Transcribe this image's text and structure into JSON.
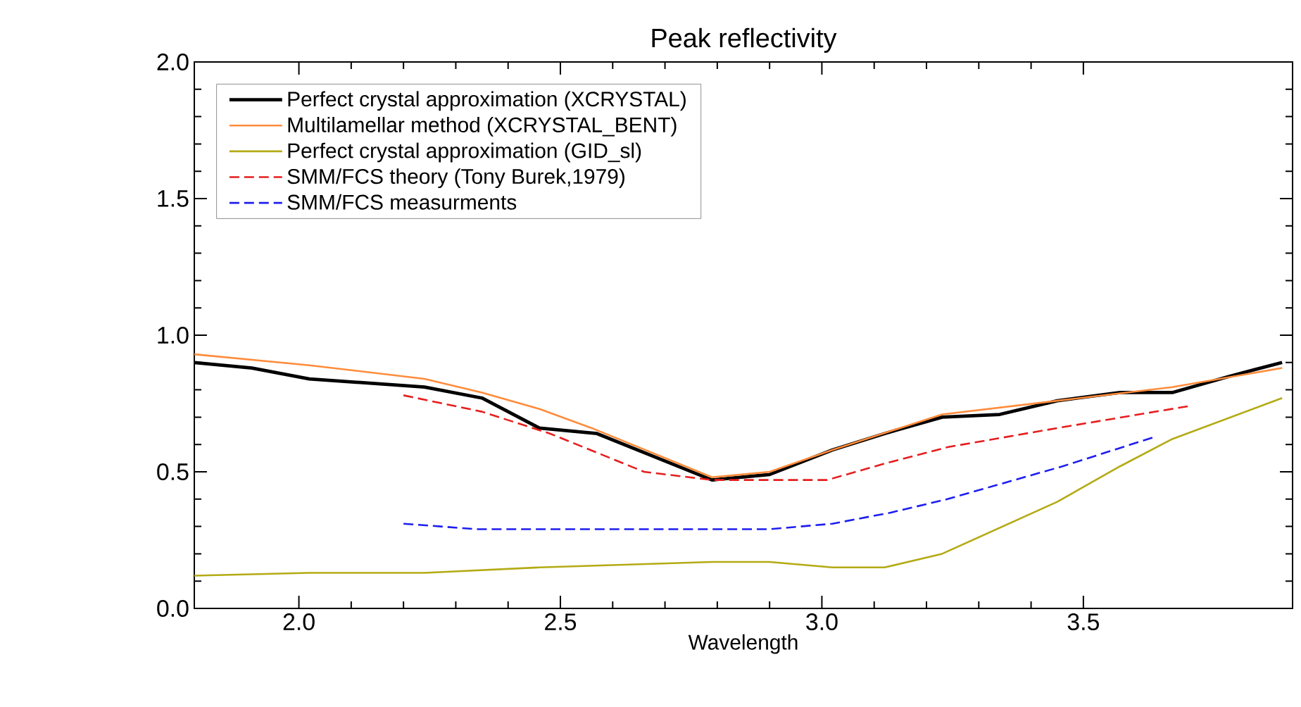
{
  "chart_data": {
    "type": "line",
    "title": "Peak reflectivity",
    "xlabel": "Wavelength",
    "xlim": [
      1.8,
      3.9
    ],
    "ylim": [
      0,
      2.0
    ],
    "xticks": [
      {
        "value": 2.0,
        "label": "2.0"
      },
      {
        "value": 2.5,
        "label": "2.5"
      },
      {
        "value": 3.0,
        "label": "3.0"
      },
      {
        "value": 3.5,
        "label": "3.5"
      }
    ],
    "yticks": [
      {
        "value": 0,
        "label": "0.0"
      },
      {
        "value": 0.5,
        "label": "0.5"
      },
      {
        "value": 1.0,
        "label": "1.0"
      },
      {
        "value": 1.5,
        "label": "1.5"
      },
      {
        "value": 2.0,
        "label": "2.0"
      }
    ],
    "legend": "top left",
    "marker": "none",
    "grid": false,
    "series": [
      {
        "name": "Perfect crystal approximation (XCRYSTAL)",
        "color": "#000000",
        "line_style": "solid",
        "x": [
          1.8,
          1.91,
          2.02,
          2.24,
          2.35,
          2.46,
          2.57,
          2.79,
          2.9,
          3.02,
          3.12,
          3.23,
          3.34,
          3.45,
          3.57,
          3.67,
          3.78,
          3.88
        ],
        "values": [
          0.9,
          0.88,
          0.84,
          0.81,
          0.77,
          0.66,
          0.64,
          0.47,
          0.49,
          0.58,
          0.64,
          0.7,
          0.71,
          0.76,
          0.79,
          0.79,
          0.85,
          0.9
        ]
      },
      {
        "name": "Multilamellar method (XCRYSTAL_BENT)",
        "color": "#ff8c3c",
        "line_style": "solid",
        "x": [
          1.8,
          2.02,
          2.24,
          2.35,
          2.46,
          2.56,
          2.79,
          2.9,
          3.02,
          3.23,
          3.45,
          3.67,
          3.88
        ],
        "values": [
          0.93,
          0.89,
          0.84,
          0.79,
          0.73,
          0.66,
          0.48,
          0.5,
          0.58,
          0.71,
          0.76,
          0.81,
          0.88
        ]
      },
      {
        "name": "Perfect crystal approximation (GID_sl)",
        "color": "#b4aa14",
        "line_style": "solid",
        "x": [
          1.8,
          2.02,
          2.24,
          2.46,
          2.79,
          2.9,
          3.02,
          3.12,
          3.23,
          3.45,
          3.57,
          3.67,
          3.88
        ],
        "values": [
          0.12,
          0.13,
          0.13,
          0.15,
          0.17,
          0.17,
          0.15,
          0.15,
          0.2,
          0.39,
          0.52,
          0.62,
          0.77
        ]
      },
      {
        "name": "SMM/FCS theory (Tony Burek,1979)",
        "color": "#e61e1e",
        "line_style": "dashed",
        "x": [
          2.2,
          2.35,
          2.48,
          2.66,
          2.79,
          3.01,
          3.12,
          3.24,
          3.45,
          3.7
        ],
        "values": [
          0.78,
          0.72,
          0.64,
          0.5,
          0.47,
          0.47,
          0.53,
          0.59,
          0.66,
          0.74
        ]
      },
      {
        "name": "SMM/FCS measurments",
        "color": "#1e1ef0",
        "line_style": "dashed",
        "x": [
          2.2,
          2.34,
          2.53,
          2.83,
          2.9,
          3.02,
          3.13,
          3.24,
          3.46,
          3.64
        ],
        "values": [
          0.31,
          0.29,
          0.29,
          0.29,
          0.29,
          0.31,
          0.35,
          0.4,
          0.52,
          0.63
        ]
      }
    ]
  }
}
